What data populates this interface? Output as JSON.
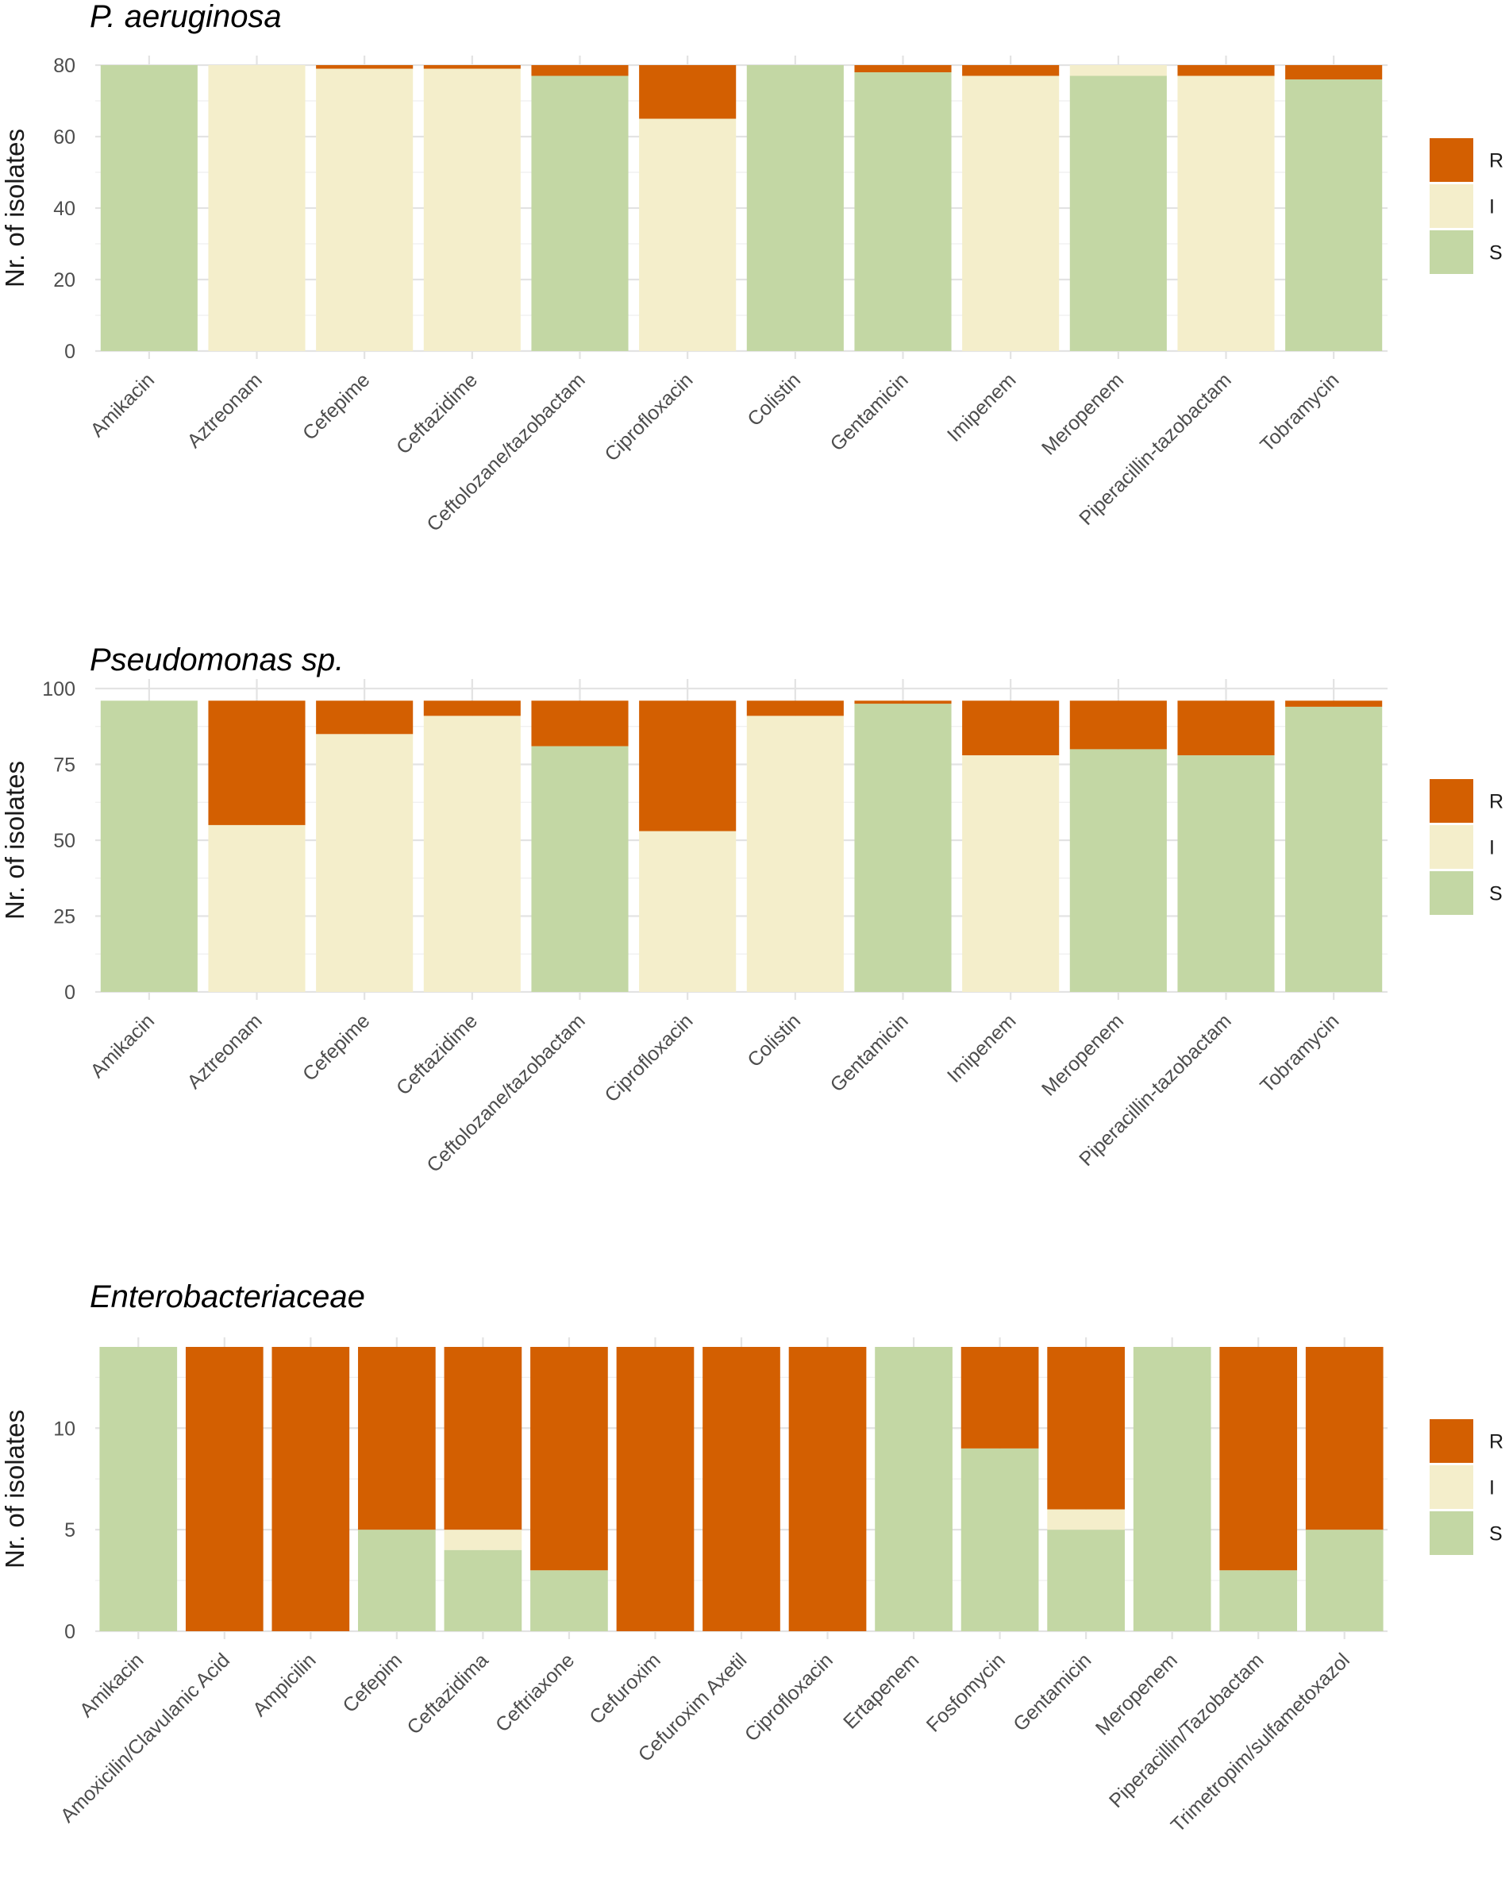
{
  "colors": {
    "R": "#d35f01",
    "I": "#f4eecb",
    "S": "#c3d7a4"
  },
  "chart_data": [
    {
      "type": "bar",
      "stacked": true,
      "title": "P. aeruginosa",
      "ylabel": "Nr. of isolates",
      "ylim": [
        0,
        80
      ],
      "yticks": [
        0,
        20,
        40,
        60,
        80
      ],
      "legend": {
        "position": "right",
        "entries": [
          "R",
          "I",
          "S"
        ]
      },
      "categories": [
        "Amikacin",
        "Aztreonam",
        "Cefepime",
        "Ceftazidime",
        "Ceftolozane/tazobactam",
        "Ciprofloxacin",
        "Colistin",
        "Gentamicin",
        "Imipenem",
        "Meropenem",
        "Piperacillin-tazobactam",
        "Tobramycin"
      ],
      "series": [
        {
          "name": "S",
          "values": [
            80,
            0,
            0,
            0,
            77,
            0,
            80,
            78,
            0,
            77,
            0,
            76
          ]
        },
        {
          "name": "I",
          "values": [
            0,
            80,
            79,
            79,
            0,
            65,
            0,
            0,
            77,
            3,
            77,
            0
          ]
        },
        {
          "name": "R",
          "values": [
            0,
            0,
            1,
            1,
            3,
            15,
            0,
            2,
            3,
            0,
            3,
            4
          ]
        }
      ]
    },
    {
      "type": "bar",
      "stacked": true,
      "title": "Pseudomonas sp.",
      "ylabel": "Nr. of isolates",
      "ylim": [
        0,
        100
      ],
      "yticks": [
        0,
        25,
        50,
        75,
        100
      ],
      "legend": {
        "position": "right",
        "entries": [
          "R",
          "I",
          "S"
        ]
      },
      "categories": [
        "Amikacin",
        "Aztreonam",
        "Cefepime",
        "Ceftazidime",
        "Ceftolozane/tazobactam",
        "Ciprofloxacin",
        "Colistin",
        "Gentamicin",
        "Imipenem",
        "Meropenem",
        "Piperacillin-tazobactam",
        "Tobramycin"
      ],
      "series": [
        {
          "name": "S",
          "values": [
            96,
            0,
            0,
            0,
            81,
            0,
            0,
            95,
            0,
            80,
            78,
            94
          ]
        },
        {
          "name": "I",
          "values": [
            0,
            55,
            85,
            91,
            0,
            53,
            91,
            0,
            78,
            0,
            0,
            0
          ]
        },
        {
          "name": "R",
          "values": [
            0,
            41,
            11,
            5,
            15,
            43,
            5,
            1,
            18,
            16,
            18,
            2
          ]
        }
      ]
    },
    {
      "type": "bar",
      "stacked": true,
      "title": "Enterobacteriaceae",
      "ylabel": "Nr. of isolates",
      "ylim": [
        0,
        14
      ],
      "yticks": [
        0,
        5,
        10
      ],
      "legend": {
        "position": "right",
        "entries": [
          "R",
          "I",
          "S"
        ]
      },
      "categories": [
        "Amikacin",
        "Amoxicilin/Clavulanic Acid",
        "Ampicilin",
        "Cefepim",
        "Ceftazidima",
        "Ceftriaxone",
        "Cefuroxim",
        "Cefuroxim Axetil",
        "Ciprofloxacin",
        "Ertapenem",
        "Fosfomycin",
        "Gentamicin",
        "Meropenem",
        "Piperacillin/Tazobactam",
        "Trimetropim/sulfametoxazol"
      ],
      "series": [
        {
          "name": "S",
          "values": [
            14,
            0,
            0,
            5,
            4,
            3,
            0,
            0,
            0,
            14,
            9,
            5,
            14,
            3,
            5
          ]
        },
        {
          "name": "I",
          "values": [
            0,
            0,
            0,
            0,
            1,
            0,
            0,
            0,
            0,
            0,
            0,
            1,
            0,
            0,
            0
          ]
        },
        {
          "name": "R",
          "values": [
            0,
            14,
            14,
            9,
            9,
            11,
            14,
            14,
            14,
            0,
            5,
            8,
            0,
            11,
            9
          ]
        }
      ]
    }
  ]
}
